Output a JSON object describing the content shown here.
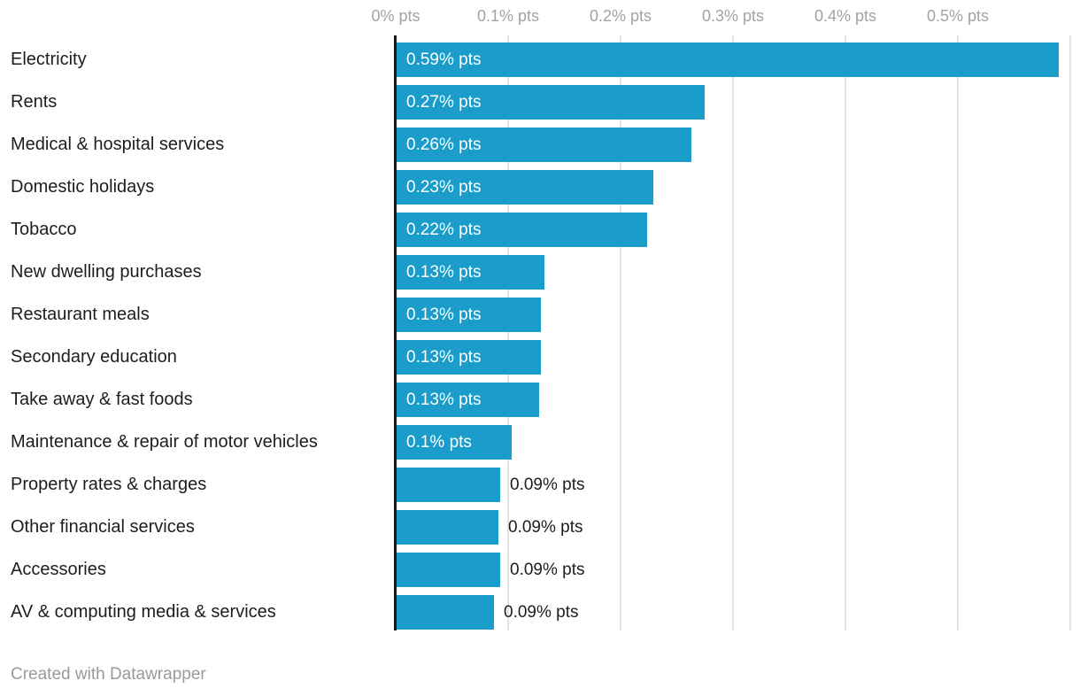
{
  "chart_data": {
    "type": "bar",
    "orientation": "horizontal",
    "unit": "% pts",
    "series": [
      {
        "category": "Electricity",
        "value": 0.59,
        "value_label": "0.59% pts",
        "bar_length": 0.589,
        "label_position": "inside"
      },
      {
        "category": "Rents",
        "value": 0.27,
        "value_label": "0.27% pts",
        "bar_length": 0.274,
        "label_position": "inside"
      },
      {
        "category": "Medical & hospital services",
        "value": 0.26,
        "value_label": "0.26% pts",
        "bar_length": 0.262,
        "label_position": "inside"
      },
      {
        "category": "Domestic holidays",
        "value": 0.23,
        "value_label": "0.23% pts",
        "bar_length": 0.2285,
        "label_position": "inside"
      },
      {
        "category": "Tobacco",
        "value": 0.22,
        "value_label": "0.22% pts",
        "bar_length": 0.2225,
        "label_position": "inside"
      },
      {
        "category": "New dwelling purchases",
        "value": 0.13,
        "value_label": "0.13% pts",
        "bar_length": 0.1315,
        "label_position": "inside"
      },
      {
        "category": "Restaurant meals",
        "value": 0.13,
        "value_label": "0.13% pts",
        "bar_length": 0.1285,
        "label_position": "inside"
      },
      {
        "category": "Secondary education",
        "value": 0.13,
        "value_label": "0.13% pts",
        "bar_length": 0.1285,
        "label_position": "inside"
      },
      {
        "category": "Take away & fast foods",
        "value": 0.13,
        "value_label": "0.13% pts",
        "bar_length": 0.127,
        "label_position": "inside"
      },
      {
        "category": "Maintenance & repair of motor vehicles",
        "value": 0.1,
        "value_label": "0.1% pts",
        "bar_length": 0.1025,
        "label_position": "inside"
      },
      {
        "category": "Property rates & charges",
        "value": 0.09,
        "value_label": "0.09% pts",
        "bar_length": 0.092,
        "label_position": "outside"
      },
      {
        "category": "Other financial services",
        "value": 0.09,
        "value_label": "0.09% pts",
        "bar_length": 0.0905,
        "label_position": "outside"
      },
      {
        "category": "Accessories",
        "value": 0.09,
        "value_label": "0.09% pts",
        "bar_length": 0.092,
        "label_position": "outside"
      },
      {
        "category": "AV & computing media & services",
        "value": 0.09,
        "value_label": "0.09% pts",
        "bar_length": 0.087,
        "label_position": "outside"
      }
    ],
    "x_axis": {
      "ticks": [
        {
          "value": 0,
          "label": "0% pts"
        },
        {
          "value": 0.1,
          "label": "0.1% pts"
        },
        {
          "value": 0.2,
          "label": "0.2% pts"
        },
        {
          "value": 0.3,
          "label": "0.3% pts"
        },
        {
          "value": 0.4,
          "label": "0.4% pts"
        },
        {
          "value": 0.5,
          "label": "0.5% pts"
        }
      ],
      "gridlines": [
        0.1,
        0.2,
        0.3,
        0.4,
        0.5,
        0.6
      ],
      "range": [
        0,
        0.6
      ],
      "grid": true
    },
    "legend": null
  },
  "footer": {
    "credit": "Created with Datawrapper"
  },
  "colors": {
    "bar": "#1b9dcb",
    "axis_line": "#1a1a1a",
    "gridline": "#e4e4e4",
    "tick_label": "#a3a3a3",
    "category_label": "#1d1d1d",
    "value_label_inside": "#ffffff",
    "value_label_outside": "#1d1d1d",
    "credit": "#9a9a9a",
    "background": "#ffffff"
  }
}
